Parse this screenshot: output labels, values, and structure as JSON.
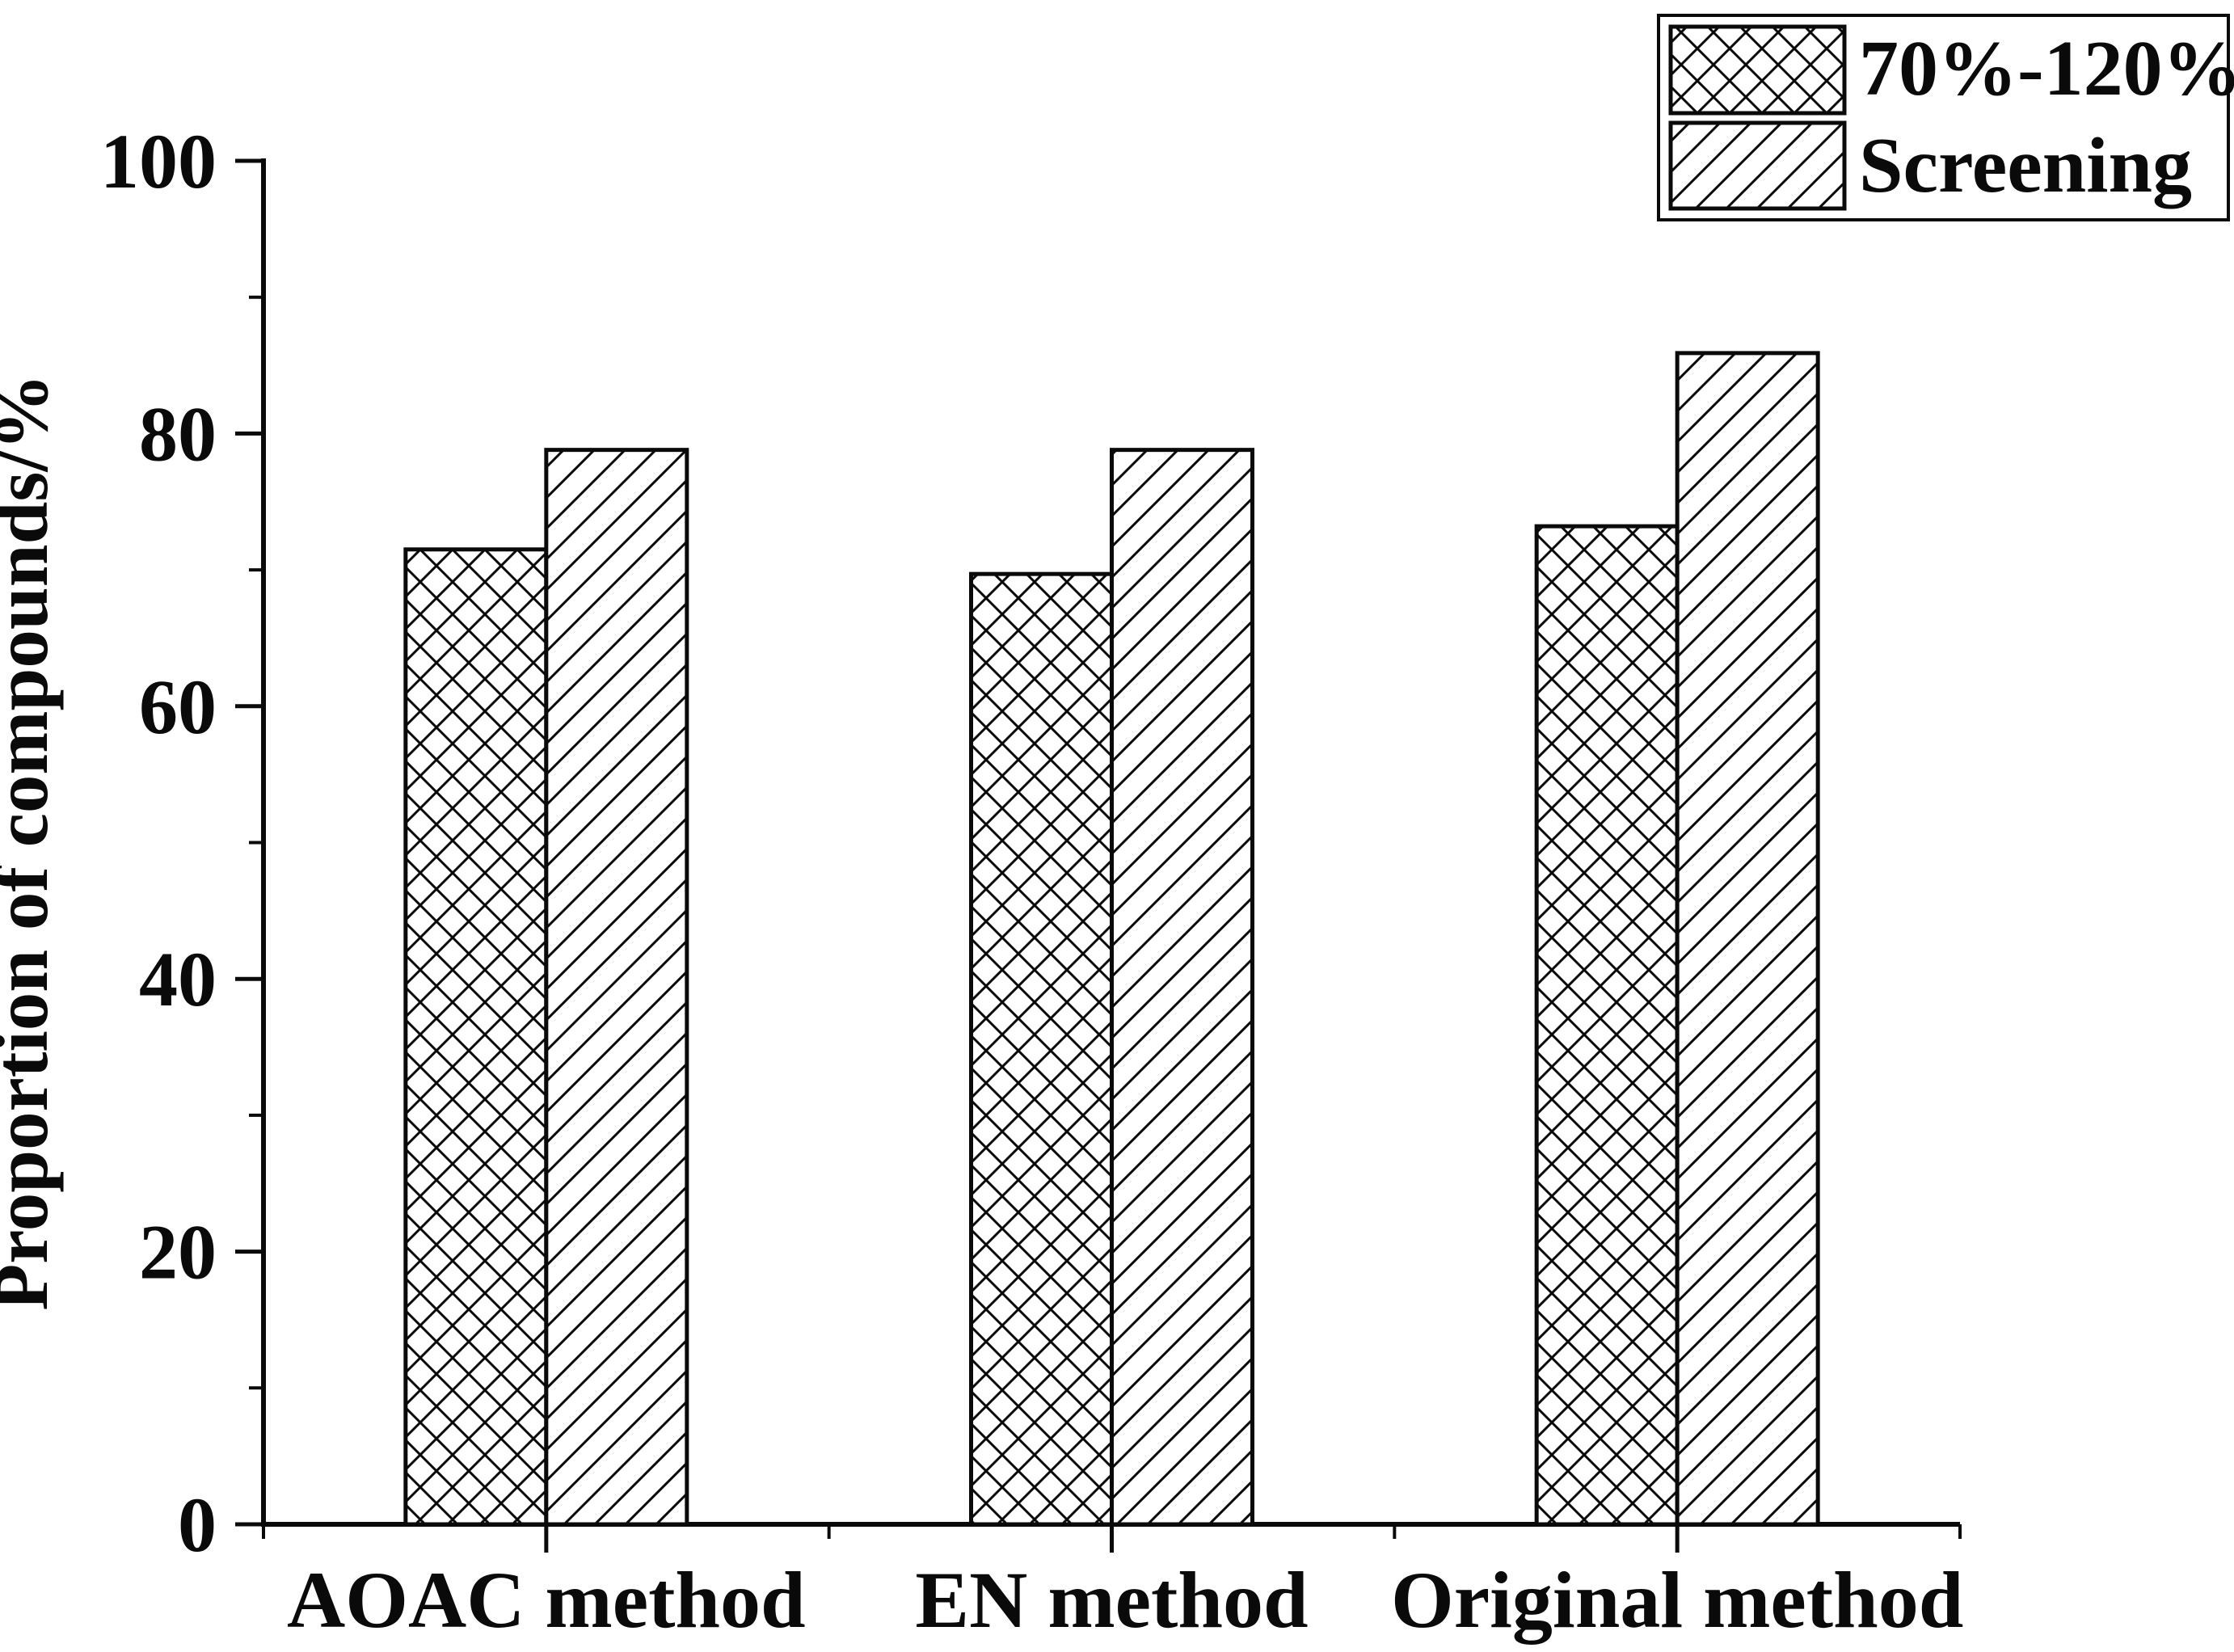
{
  "chart_data": {
    "type": "bar",
    "title": "",
    "categories": [
      "AOAC method",
      "EN method",
      "Original method"
    ],
    "series": [
      {
        "name": "70%-120%",
        "pattern": "crosshatch",
        "values": [
          71.5,
          69.7,
          73.2
        ]
      },
      {
        "name": "Screening",
        "pattern": "diagonal",
        "values": [
          78.8,
          78.8,
          85.9
        ]
      }
    ],
    "xlabel": "",
    "ylabel": "Proportion of compounds/%",
    "ylim": [
      0,
      100
    ],
    "yticks_major": [
      0,
      20,
      40,
      60,
      80,
      100
    ],
    "yticks_minor": [
      10,
      30,
      50,
      70,
      90
    ],
    "grid": false,
    "legend_position": "top-right",
    "style": {
      "line_color": "#0a0a0a",
      "background": "#ffffff",
      "bar_fill": "white-with-black-hatch"
    }
  }
}
